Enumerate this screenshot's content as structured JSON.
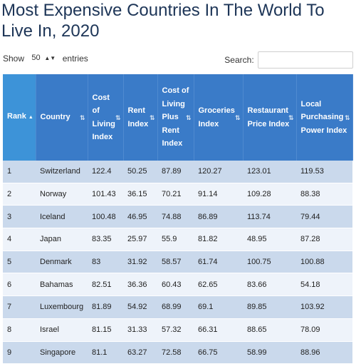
{
  "page": {
    "title": "Most Expensive Countries In The World To Live In, 2020"
  },
  "controls": {
    "show_label": "Show",
    "page_size": "50",
    "entries_label": "entries",
    "search_label": "Search:",
    "search_value": ""
  },
  "table": {
    "columns": [
      "Rank",
      "Country",
      "Cost of Living Index",
      "Rent Index",
      "Cost of Living Plus Rent Index",
      "Groceries Index",
      "Restaurant Price Index",
      "Local Purchasing Power Index"
    ],
    "sorted_column": "Rank",
    "rows": [
      [
        "1",
        "Switzerland",
        "122.4",
        "50.25",
        "87.89",
        "120.27",
        "123.01",
        "119.53"
      ],
      [
        "2",
        "Norway",
        "101.43",
        "36.15",
        "70.21",
        "91.14",
        "109.28",
        "88.38"
      ],
      [
        "3",
        "Iceland",
        "100.48",
        "46.95",
        "74.88",
        "86.89",
        "113.74",
        "79.44"
      ],
      [
        "4",
        "Japan",
        "83.35",
        "25.97",
        "55.9",
        "81.82",
        "48.95",
        "87.28"
      ],
      [
        "5",
        "Denmark",
        "83",
        "31.92",
        "58.57",
        "61.74",
        "100.75",
        "100.88"
      ],
      [
        "6",
        "Bahamas",
        "82.51",
        "36.36",
        "60.43",
        "62.65",
        "83.66",
        "54.18"
      ],
      [
        "7",
        "Luxembourg",
        "81.89",
        "54.92",
        "68.99",
        "69.1",
        "89.85",
        "103.92"
      ],
      [
        "8",
        "Israel",
        "81.15",
        "31.33",
        "57.32",
        "66.31",
        "88.65",
        "78.09"
      ],
      [
        "9",
        "Singapore",
        "81.1",
        "63.27",
        "72.58",
        "66.75",
        "58.99",
        "88.96"
      ]
    ]
  }
}
